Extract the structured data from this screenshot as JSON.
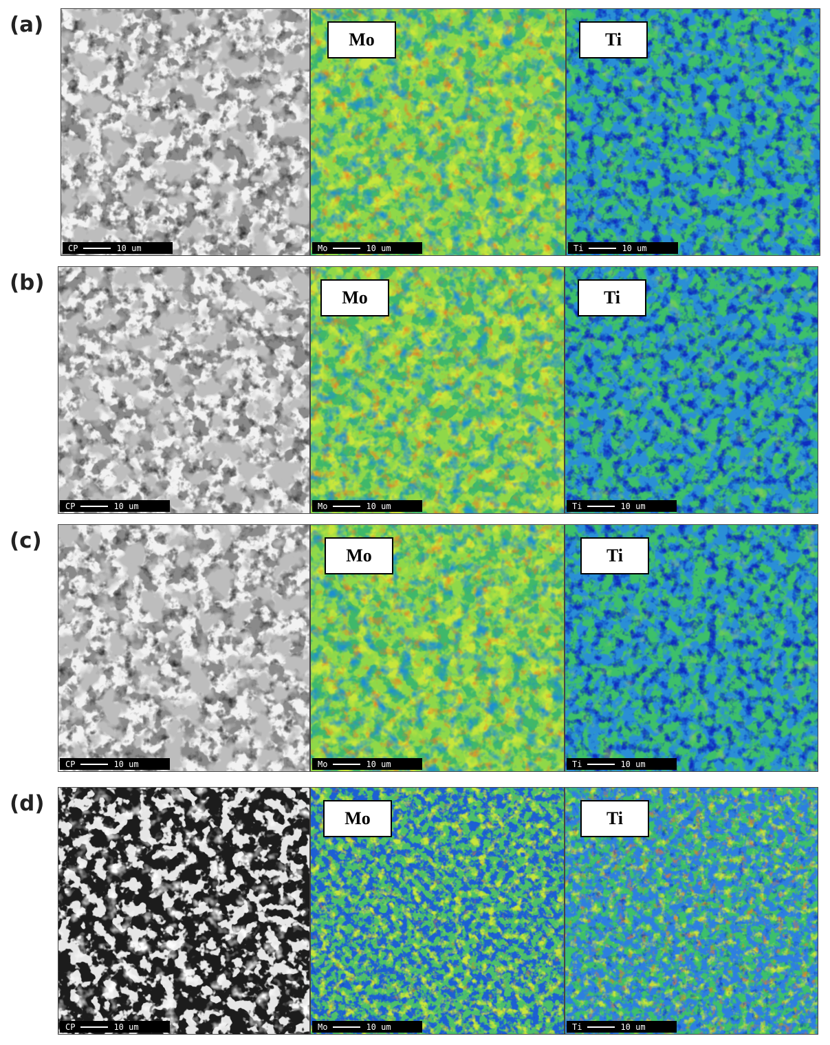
{
  "rows": [
    {
      "label": "(a)",
      "panels": [
        {
          "type": "sem",
          "scale_tag": "CP",
          "scale_value": "10 um"
        },
        {
          "type": "map",
          "element": "Mo",
          "scale_tag": "Mo",
          "scale_value": "10 um"
        },
        {
          "type": "map",
          "element": "Ti",
          "scale_tag": "Ti",
          "scale_value": "10 um"
        }
      ]
    },
    {
      "label": "(b)",
      "panels": [
        {
          "type": "sem",
          "scale_tag": "CP",
          "scale_value": "10 um"
        },
        {
          "type": "map",
          "element": "Mo",
          "scale_tag": "Mo",
          "scale_value": "10 um"
        },
        {
          "type": "map",
          "element": "Ti",
          "scale_tag": "Ti",
          "scale_value": "10 um"
        }
      ]
    },
    {
      "label": "(c)",
      "panels": [
        {
          "type": "sem",
          "scale_tag": "CP",
          "scale_value": "10 um"
        },
        {
          "type": "map",
          "element": "Mo",
          "scale_tag": "Mo",
          "scale_value": "10 um"
        },
        {
          "type": "map",
          "element": "Ti",
          "scale_tag": "Ti",
          "scale_value": "10 um"
        }
      ]
    },
    {
      "label": "(d)",
      "panels": [
        {
          "type": "sem",
          "scale_tag": "CP",
          "scale_value": "10 um"
        },
        {
          "type": "map",
          "element": "Mo",
          "scale_tag": "Mo",
          "scale_value": "10 um"
        },
        {
          "type": "map",
          "element": "Ti",
          "scale_tag": "Ti",
          "scale_value": "10 um"
        }
      ]
    }
  ],
  "colors": {
    "map_base": "#3fb86a",
    "map_low": "#0a2fbf",
    "map_mid": "#c8e63a",
    "map_high": "#f07a20",
    "sem_base": "#8a8a8a"
  }
}
